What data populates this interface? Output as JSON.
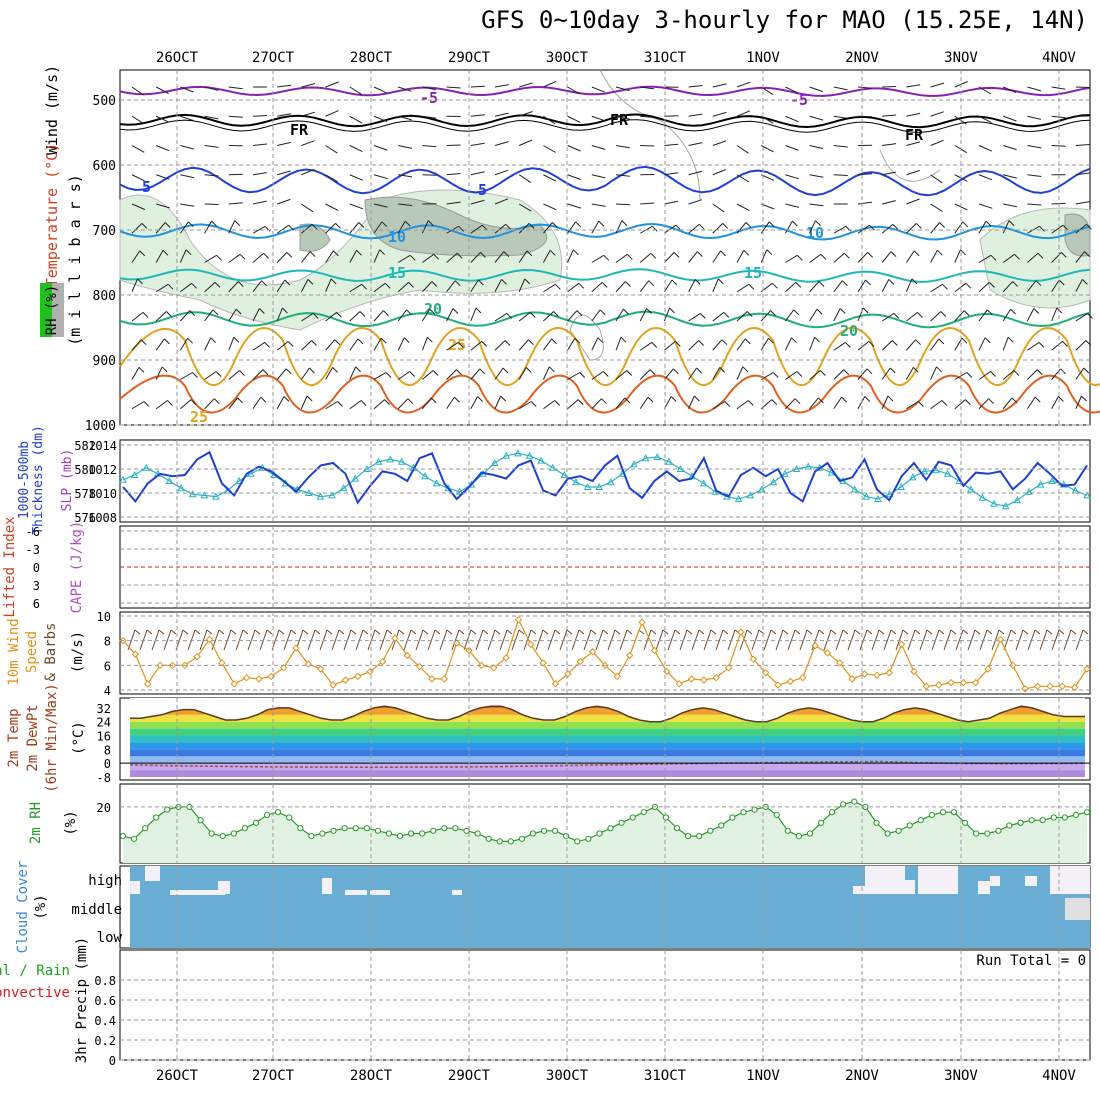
{
  "title": "GFS 0~10day 3-hourly for MAO (15.25E, 14N)",
  "x_ticks": [
    "26OCT",
    "27OCT",
    "28OCT",
    "29OCT",
    "30OCT",
    "31OCT",
    "1NOV",
    "2NOV",
    "3NOV",
    "4NOV"
  ],
  "colors": {
    "temp_contour_-5": "#8a1fb3",
    "temp_contour_FR": "#000000",
    "temp_contour_5": "#1f3fd6",
    "temp_contour_10": "#1f93e0",
    "temp_contour_15": "#1fb8b8",
    "temp_contour_20": "#1fae7a",
    "temp_contour_25": "#e3a21a",
    "rh_shade": "#dff0df",
    "thickness": "#1f3fcf",
    "slp": "#2ab3c3",
    "wind10m": "#e3921a",
    "rh2m": "#2a9a2a",
    "cloud": "#6aaed6",
    "lifted_zero": "#d62020"
  },
  "panels": {
    "upper_air": {
      "label_wind": "Wind (m/s)",
      "label_temp": "Temperature (°C)",
      "label_rh": "RH (%)",
      "label_mb": "(m i l l i b a r s)",
      "y_ticks": [
        "500",
        "600",
        "700",
        "800",
        "900",
        "1000"
      ],
      "contour_labels": [
        "-5",
        "-5",
        "FR",
        "FR",
        "FR",
        "5",
        "5",
        "10",
        "10",
        "15",
        "15",
        "20",
        "20",
        "25",
        "25"
      ]
    },
    "thickness_slp": {
      "label_left1": "1000-500mb",
      "label_left2": "Thickness (dm)",
      "label_right": "SLP (mb)",
      "y_ticks_left": [
        "576",
        "578",
        "580",
        "582"
      ],
      "y_ticks_right": [
        "1008",
        "1010",
        "1012",
        "1014"
      ]
    },
    "cape_li": {
      "label1": "Lifted Index",
      "label2": "CAPE (J/kg)",
      "y_ticks": [
        "-6",
        "-3",
        "0",
        "3",
        "6"
      ]
    },
    "wind10m": {
      "label1": "10m Wind",
      "label2": "Speed",
      "label3": "& Barbs",
      "label4": "(m/s)",
      "y_ticks": [
        "4",
        "6",
        "8",
        "10"
      ]
    },
    "temp2m": {
      "label1": "2m Temp",
      "label2": "2m DewPt",
      "label3": "(6hr Min/Max)",
      "label4": "(°C)",
      "y_ticks": [
        "32",
        "24",
        "16",
        "8",
        "0",
        "-8"
      ]
    },
    "rh2m": {
      "label1": "2m RH",
      "label2": "(%)",
      "y_ticks": [
        "20"
      ]
    },
    "cloud": {
      "label1": "Cloud Cover",
      "label2": "(%)",
      "levels": [
        "high",
        "middle",
        "low"
      ]
    },
    "precip": {
      "label1": "Total / Rain",
      "label2": "Convective",
      "label3": "3hr Precip (mm)",
      "y_ticks": [
        "0",
        "0.2",
        "0.4",
        "0.6",
        "0.8"
      ],
      "run_total": "Run Total = 0"
    }
  },
  "chart_data": [
    {
      "type": "line",
      "name": "1000-500mb thickness / SLP",
      "series": [
        {
          "name": "Thickness (dm)",
          "values": [
            578.5,
            577.3,
            578.8,
            579.6,
            579.4,
            579.5,
            580.8,
            581.4,
            578.8,
            577.8,
            579.6,
            580.2,
            579.8,
            579.0,
            578.1,
            579.3,
            580.3,
            580.5,
            579.6,
            577.2,
            578.6,
            579.8,
            579.6,
            579.0,
            580.9,
            581.3,
            578.8,
            577.5,
            578.5,
            579.7,
            579.5,
            579.2,
            580.3,
            580.7,
            578.2,
            577.8,
            579.2,
            579.4,
            579.0,
            580.3,
            581.1,
            578.4,
            577.6,
            579.0,
            579.8,
            579.0,
            579.2,
            580.9,
            578.2,
            577.7,
            579.5,
            580.1,
            579.4,
            580.0,
            578.0,
            577.3,
            579.8,
            580.5,
            579.0,
            579.3,
            580.8,
            578.3,
            577.4,
            579.4,
            580.5,
            579.1,
            580.6,
            580.3,
            578.6,
            579.7,
            579.6,
            579.8,
            578.3,
            579.2,
            580.5,
            579.6,
            578.6,
            578.7,
            580.3
          ]
        },
        {
          "name": "SLP (mb)",
          "values": [
            1011.1,
            1011.5,
            1012.1,
            1011.6,
            1011.0,
            1010.4,
            1009.9,
            1009.8,
            1009.7,
            1010.2,
            1011.0,
            1011.6,
            1012.1,
            1011.5,
            1010.8,
            1010.3,
            1010.0,
            1009.7,
            1009.8,
            1010.4,
            1011.2,
            1012.0,
            1012.6,
            1012.8,
            1012.6,
            1012.1,
            1011.4,
            1010.8,
            1010.4,
            1010.1,
            1010.7,
            1011.6,
            1012.5,
            1013.1,
            1013.3,
            1013.1,
            1012.7,
            1012.1,
            1011.5,
            1010.9,
            1010.5,
            1010.5,
            1010.9,
            1011.6,
            1012.4,
            1012.9,
            1013.0,
            1012.6,
            1012.0,
            1011.4,
            1010.8,
            1010.1,
            1009.7,
            1009.5,
            1009.8,
            1010.3,
            1010.9,
            1011.6,
            1012.0,
            1012.2,
            1012.1,
            1011.7,
            1011.0,
            1010.3,
            1009.7,
            1009.5,
            1009.9,
            1010.5,
            1011.3,
            1011.8,
            1011.9,
            1011.6,
            1011.0,
            1010.3,
            1009.6,
            1009.1,
            1008.9,
            1009.4,
            1010.1,
            1010.7,
            1011.0,
            1010.7,
            1010.2,
            1009.8
          ]
        }
      ],
      "ylim": [
        576,
        582
      ],
      "y2lim": [
        1008,
        1014
      ]
    },
    {
      "type": "line",
      "name": "10m wind speed",
      "series": [
        {
          "name": "10m Wind Speed (m/s)",
          "values": [
            8.0,
            6.9,
            4.5,
            6.0,
            6.0,
            6.0,
            6.7,
            8.1,
            6.2,
            4.5,
            5.0,
            4.9,
            5.1,
            5.8,
            7.4,
            6.1,
            5.7,
            4.4,
            4.8,
            5.1,
            5.5,
            6.3,
            8.2,
            6.8,
            5.9,
            4.9,
            4.9,
            7.8,
            7.2,
            6.0,
            5.8,
            6.6,
            9.7,
            7.7,
            6.2,
            4.5,
            5.3,
            6.3,
            7.1,
            6.0,
            5.1,
            6.8,
            9.5,
            7.2,
            5.5,
            4.5,
            4.9,
            4.8,
            5.0,
            5.8,
            8.7,
            6.5,
            5.4,
            4.4,
            4.7,
            5.0,
            7.6,
            7.0,
            6.2,
            4.9,
            5.3,
            5.2,
            5.4,
            7.7,
            5.5,
            4.3,
            4.4,
            4.6,
            4.6,
            4.6,
            5.7,
            8.1,
            6.0,
            4.1,
            4.3,
            4.3,
            4.3,
            4.2,
            5.7
          ]
        }
      ],
      "ylim": [
        4,
        10
      ]
    },
    {
      "type": "area",
      "name": "2m temperature",
      "series": [
        {
          "name": "2m Temp (°C)",
          "values": [
            26,
            26,
            27,
            28,
            30,
            31,
            31,
            29,
            27,
            25,
            25,
            26,
            28,
            31,
            32,
            32,
            30,
            28,
            26,
            25,
            25,
            27,
            30,
            32,
            33,
            32,
            30,
            28,
            26,
            25,
            25,
            27,
            30,
            32,
            33,
            33,
            31,
            28,
            26,
            25,
            25,
            27,
            30,
            32,
            33,
            32,
            30,
            27,
            25,
            24,
            24,
            26,
            29,
            31,
            32,
            31,
            29,
            27,
            25,
            24,
            24,
            26,
            29,
            31,
            32,
            31,
            29,
            27,
            25,
            24,
            24,
            26,
            29,
            31,
            32,
            31,
            29,
            27,
            25,
            24,
            25,
            26,
            29,
            31,
            33,
            32,
            30,
            28,
            27,
            27,
            27
          ]
        }
      ],
      "ylim": [
        -8,
        36
      ]
    },
    {
      "type": "line",
      "name": "2m RH",
      "series": [
        {
          "name": "2m RH (%)",
          "values": [
            9,
            8,
            12,
            16,
            19,
            20,
            20,
            15,
            10,
            9,
            10,
            12,
            14,
            17,
            18,
            16,
            12,
            9,
            10,
            11,
            12,
            12,
            12,
            11,
            10,
            9,
            10,
            10,
            11,
            12,
            12,
            11,
            10,
            8,
            7,
            7,
            8,
            10,
            11,
            11,
            9,
            7,
            8,
            10,
            12,
            14,
            16,
            18,
            20,
            16,
            12,
            9,
            9,
            11,
            13,
            16,
            18,
            19,
            20,
            17,
            11,
            9,
            10,
            14,
            18,
            21,
            22,
            20,
            14,
            10,
            11,
            13,
            15,
            17,
            18,
            18,
            14,
            10,
            10,
            11,
            13,
            14,
            15,
            15,
            16,
            16,
            17,
            18
          ]
        }
      ],
      "ylim": [
        0,
        30
      ]
    },
    {
      "type": "bar",
      "name": "Cloud cover (%)",
      "series": [
        {
          "name": "high",
          "values": [
            82,
            70,
            87,
            95,
            98,
            100,
            95,
            90,
            100,
            100,
            100,
            100,
            100,
            100,
            100,
            100,
            100,
            100,
            100,
            100
          ]
        }
      ],
      "ylim": [
        0,
        100
      ]
    },
    {
      "type": "bar",
      "name": "3hr Precip (mm)",
      "series": [
        {
          "name": "Total / Rain",
          "values": []
        },
        {
          "name": "Convective",
          "values": []
        }
      ],
      "ylim": [
        0,
        1
      ]
    }
  ]
}
